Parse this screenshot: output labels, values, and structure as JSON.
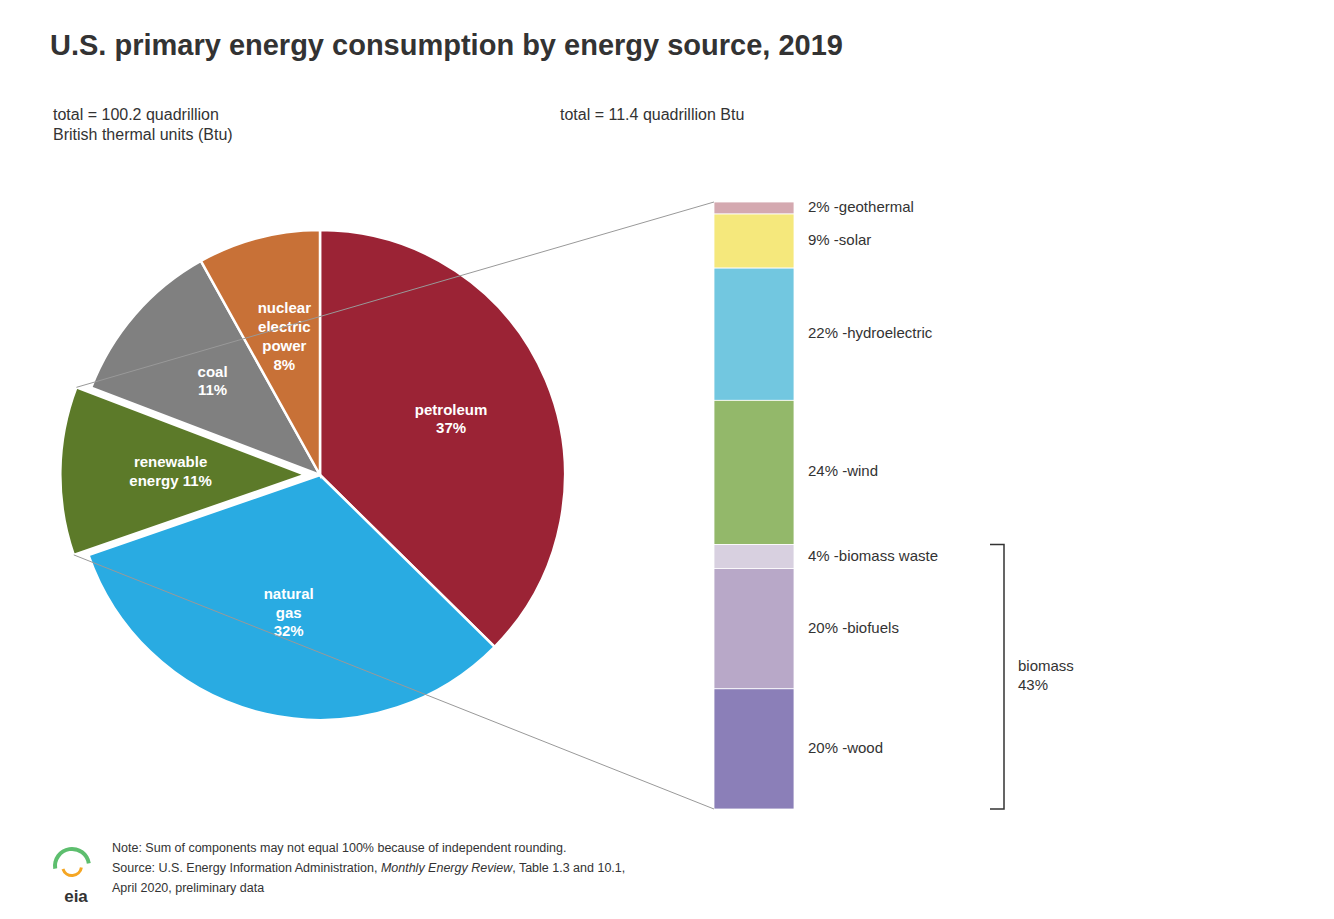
{
  "chart_data": [
    {
      "type": "pie",
      "title": "U.S. primary energy consumption by energy source, 2019",
      "subtitle": "total = 100.2 quadrillion\nBritish thermal units (Btu)",
      "categories": [
        "petroleum\n37%",
        "natural\ngas\n32%",
        "renewable\nenergy 11%",
        "coal\n11%",
        "nuclear\nelectric\npower\n8%"
      ],
      "values": [
        37,
        32,
        11,
        11,
        8
      ],
      "colors": [
        "#9b2335",
        "#29abe2",
        "#5c7a29",
        "#808080",
        "#c87137"
      ],
      "annotations": [
        "Note: Sum of components may not equal 100% because of independent rounding.",
        "Source: U.S. Energy Information Administration, ",
        "Monthly Energy Review",
        ", Table 1.3 and 10.1,",
        "April 2020, preliminary data",
        "eia"
      ]
    },
    {
      "type": "bar",
      "stacked": true,
      "tick_labels": false,
      "subtitle": "total = 11.4 quadrillion Btu",
      "series": [
        {
          "name": "2% -geothermal",
          "color": "#d4a9b0",
          "values": [
            2
          ]
        },
        {
          "name": "9% -solar",
          "color": "#f5e87c",
          "values": [
            9
          ]
        },
        {
          "name": "22% -hydroelectric",
          "color": "#72c7e0",
          "values": [
            22
          ]
        },
        {
          "name": "24% -wind",
          "color": "#93b86a",
          "values": [
            24
          ]
        },
        {
          "name": "4% -biomass waste",
          "color": "#d8d0e0",
          "values": [
            4
          ]
        },
        {
          "name": "20% -biofuels",
          "color": "#b8a8c8",
          "values": [
            20
          ]
        },
        {
          "name": "20% -wood",
          "color": "#8b7fb8",
          "values": [
            20
          ]
        }
      ],
      "annotations": [
        "biomass\n43%"
      ]
    }
  ]
}
